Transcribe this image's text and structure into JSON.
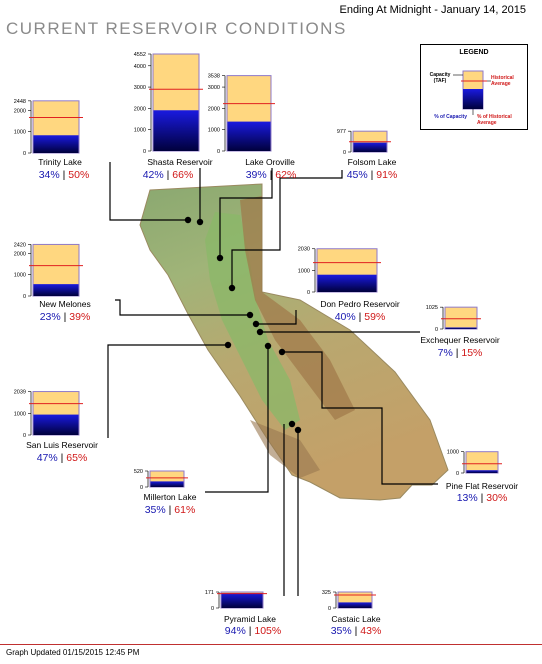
{
  "header": {
    "date_line": "Ending At Midnight - January 14, 2015",
    "title": "CURRENT RESERVOIR CONDITIONS"
  },
  "legend": {
    "title": "LEGEND",
    "capacity_label": "Capacity (TAF)",
    "historical_label": "Historical Average",
    "pct_capacity_label": "% of Capacity",
    "pct_historical_label": "% of Historical Average"
  },
  "footer": {
    "updated": "Graph Updated 01/15/2015 12:45 PM"
  },
  "colors": {
    "capacity_fill": "#ffd780",
    "storage_top": "#1a1ae0",
    "storage_bottom": "#00003c",
    "historical_line": "#e02020",
    "pct_capacity_text": "#1818b0",
    "pct_historical_text": "#d01818"
  },
  "chart_data": [
    {
      "type": "bar",
      "name": "Trinity Lake",
      "capacity": 2448,
      "ticks": [
        2448,
        2000,
        1000,
        0
      ],
      "pct_capacity": 34,
      "pct_historical": 50,
      "pct_capacity_label": "34%",
      "pct_historical_label": "50%"
    },
    {
      "type": "bar",
      "name": "Shasta Reservoir",
      "capacity": 4552,
      "ticks": [
        4552,
        4000,
        3000,
        2000,
        1000,
        0
      ],
      "pct_capacity": 42,
      "pct_historical": 66,
      "pct_capacity_label": "42%",
      "pct_historical_label": "66%"
    },
    {
      "type": "bar",
      "name": "Lake Oroville",
      "capacity": 3538,
      "ticks": [
        3538,
        3000,
        2000,
        1000,
        0
      ],
      "pct_capacity": 39,
      "pct_historical": 62,
      "pct_capacity_label": "39%",
      "pct_historical_label": "62%"
    },
    {
      "type": "bar",
      "name": "Folsom Lake",
      "capacity": 977,
      "ticks": [
        977,
        0
      ],
      "pct_capacity": 45,
      "pct_historical": 91,
      "pct_capacity_label": "45%",
      "pct_historical_label": "91%"
    },
    {
      "type": "bar",
      "name": "New Melones",
      "capacity": 2420,
      "ticks": [
        2420,
        2000,
        1000,
        0
      ],
      "pct_capacity": 23,
      "pct_historical": 39,
      "pct_capacity_label": "23%",
      "pct_historical_label": "39%"
    },
    {
      "type": "bar",
      "name": "Don Pedro Reservoir",
      "capacity": 2030,
      "ticks": [
        2030,
        1000,
        0
      ],
      "pct_capacity": 40,
      "pct_historical": 59,
      "pct_capacity_label": "40%",
      "pct_historical_label": "59%"
    },
    {
      "type": "bar",
      "name": "Exchequer Reservoir",
      "capacity": 1025,
      "ticks": [
        1025,
        0
      ],
      "pct_capacity": 7,
      "pct_historical": 15,
      "pct_capacity_label": "7%",
      "pct_historical_label": "15%"
    },
    {
      "type": "bar",
      "name": "San Luis Reservoir",
      "capacity": 2039,
      "ticks": [
        2039,
        1000,
        0
      ],
      "pct_capacity": 47,
      "pct_historical": 65,
      "pct_capacity_label": "47%",
      "pct_historical_label": "65%"
    },
    {
      "type": "bar",
      "name": "Millerton Lake",
      "capacity": 520,
      "ticks": [
        520,
        0
      ],
      "pct_capacity": 35,
      "pct_historical": 61,
      "pct_capacity_label": "35%",
      "pct_historical_label": "61%"
    },
    {
      "type": "bar",
      "name": "Pine Flat Reservoir",
      "capacity": 1000,
      "ticks": [
        1000,
        0
      ],
      "pct_capacity": 13,
      "pct_historical": 30,
      "pct_capacity_label": "13%",
      "pct_historical_label": "30%"
    },
    {
      "type": "bar",
      "name": "Pyramid Lake",
      "capacity": 171,
      "ticks": [
        171,
        0
      ],
      "pct_capacity": 94,
      "pct_historical": 105,
      "pct_capacity_label": "94%",
      "pct_historical_label": "105%"
    },
    {
      "type": "bar",
      "name": "Castaic Lake",
      "capacity": 325,
      "ticks": [
        325,
        0
      ],
      "pct_capacity": 35,
      "pct_historical": 43,
      "pct_capacity_label": "35%",
      "pct_historical_label": "43%"
    }
  ]
}
